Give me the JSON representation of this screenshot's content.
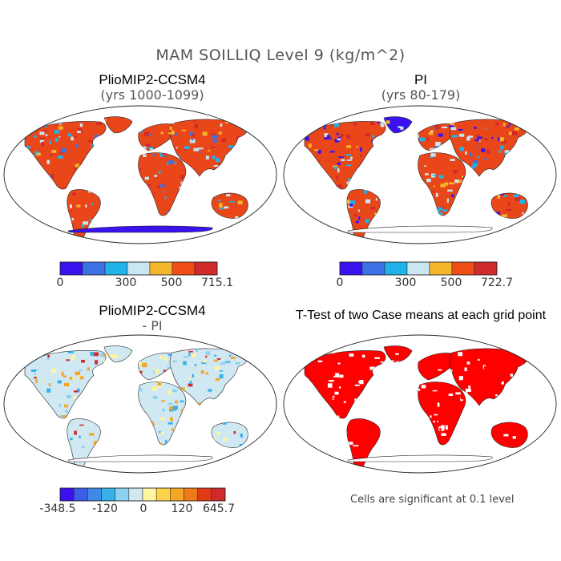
{
  "figure": {
    "title": "MAM SOILLIQ Level 9 (kg/m^2)"
  },
  "panels": [
    {
      "id": "case",
      "title": "PlioMIP2-CCSM4",
      "subtitle": "(yrs 1000-1099)",
      "colorbar": {
        "colors": [
          "#3a12f0",
          "#3d72e6",
          "#1fb3ea",
          "#c8e7f2",
          "#f4b62a",
          "#f14d17",
          "#d02a2a"
        ],
        "tick_labels": [
          "0",
          "300",
          "500",
          "715.1"
        ]
      }
    },
    {
      "id": "control",
      "title": "PI",
      "subtitle": "(yrs 80-179)",
      "colorbar": {
        "colors": [
          "#3a12f0",
          "#3d72e6",
          "#1fb3ea",
          "#c8e7f2",
          "#f4b62a",
          "#f14d17",
          "#d02a2a"
        ],
        "tick_labels": [
          "0",
          "300",
          "500",
          "722.7"
        ]
      }
    },
    {
      "id": "difference",
      "title": "PlioMIP2-CCSM4",
      "subtitle": "- PI",
      "colorbar": {
        "colors": [
          "#3a12f0",
          "#3d5ce8",
          "#3d8ae8",
          "#39b0ea",
          "#8cd2ee",
          "#cfe8f2",
          "#fff5a0",
          "#fbd44a",
          "#f5a623",
          "#ee7a1b",
          "#e23a17",
          "#d02a2a"
        ],
        "tick_labels": [
          "-348.5",
          "-120",
          "0",
          "120",
          "645.7"
        ]
      }
    },
    {
      "id": "ttest",
      "title": "T-Test of two Case means at each grid point",
      "note": "Cells are significant at 0.1 level",
      "significant_color": "#ff0000"
    }
  ]
}
